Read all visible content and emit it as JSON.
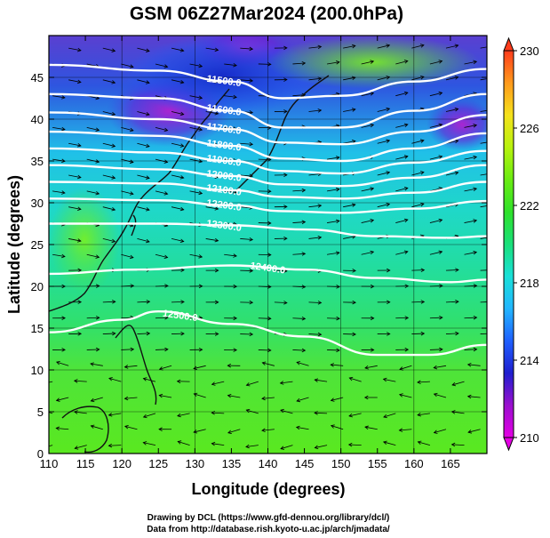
{
  "title": "GSM 06Z27Mar2024 (200.0hPa)",
  "xlabel": "Longitude (degrees)",
  "ylabel": "Latitude  (degrees)",
  "credit_line1": "Drawing by DCL (https://www.gfd-dennou.org/library/dcl/)",
  "credit_line2": "Data from http://database.rish.kyoto-u.ac.jp/arch/jmadata/",
  "map": {
    "lon_range": [
      110,
      170
    ],
    "lat_range": [
      0,
      50
    ],
    "xticks": [
      110,
      115,
      120,
      125,
      130,
      135,
      140,
      145,
      150,
      155,
      160,
      165
    ],
    "yticks": [
      0,
      5,
      10,
      15,
      20,
      25,
      30,
      35,
      40,
      45
    ],
    "grid_lon": [
      110,
      120,
      130,
      140,
      150,
      160,
      170
    ],
    "grid_lat": [
      0,
      5,
      10,
      15,
      20,
      25,
      30,
      35,
      40,
      45,
      50
    ]
  },
  "colorbar": {
    "min": 210,
    "max": 230,
    "tick_values": [
      210,
      214,
      218,
      222,
      226,
      230
    ],
    "tick_labels": [
      "210",
      "214",
      "218",
      "222",
      "226",
      "230"
    ],
    "colors": [
      "#e400e4",
      "#9a10ce",
      "#1f1fcf",
      "#1f60ff",
      "#22b6ff",
      "#19e0d8",
      "#19e07a",
      "#2fe12a",
      "#6aec12",
      "#b8f20e",
      "#f5e21c",
      "#ff9a1c",
      "#ff3c1c"
    ]
  },
  "contours": [
    {
      "label": "11500.0",
      "points": [
        [
          110,
          46.5
        ],
        [
          125,
          45.8
        ],
        [
          135,
          44.5
        ],
        [
          142,
          42.5
        ],
        [
          150,
          42.8
        ],
        [
          160,
          44.5
        ],
        [
          170,
          46.0
        ]
      ]
    },
    {
      "label": "11600.0",
      "points": [
        [
          110,
          43.0
        ],
        [
          125,
          42.5
        ],
        [
          135,
          41.0
        ],
        [
          142,
          39.0
        ],
        [
          150,
          39.0
        ],
        [
          160,
          41.0
        ],
        [
          170,
          43.0
        ]
      ]
    },
    {
      "label": "11700.0",
      "points": [
        [
          110,
          40.8
        ],
        [
          125,
          40.0
        ],
        [
          135,
          38.8
        ],
        [
          142,
          37.2
        ],
        [
          150,
          37.0
        ],
        [
          160,
          38.5
        ],
        [
          170,
          40.5
        ]
      ]
    },
    {
      "label": "11800.0",
      "points": [
        [
          110,
          38.5
        ],
        [
          125,
          38.0
        ],
        [
          135,
          36.8
        ],
        [
          142,
          35.3
        ],
        [
          150,
          35.0
        ],
        [
          160,
          36.5
        ],
        [
          170,
          38.3
        ]
      ]
    },
    {
      "label": "11900.0",
      "points": [
        [
          110,
          36.5
        ],
        [
          125,
          36.0
        ],
        [
          135,
          35.0
        ],
        [
          142,
          33.8
        ],
        [
          150,
          33.5
        ],
        [
          160,
          34.8
        ],
        [
          170,
          36.2
        ]
      ]
    },
    {
      "label": "12000.0",
      "points": [
        [
          110,
          34.5
        ],
        [
          125,
          34.0
        ],
        [
          135,
          33.2
        ],
        [
          142,
          32.2
        ],
        [
          150,
          32.0
        ],
        [
          160,
          33.0
        ],
        [
          170,
          34.5
        ]
      ]
    },
    {
      "label": "12100.0",
      "points": [
        [
          110,
          32.5
        ],
        [
          125,
          32.3
        ],
        [
          135,
          31.5
        ],
        [
          142,
          30.7
        ],
        [
          150,
          30.5
        ],
        [
          160,
          31.2
        ],
        [
          170,
          32.5
        ]
      ]
    },
    {
      "label": "12200.0",
      "points": [
        [
          110,
          30.5
        ],
        [
          125,
          30.3
        ],
        [
          135,
          29.7
        ],
        [
          142,
          29.0
        ],
        [
          150,
          28.8
        ],
        [
          160,
          29.3
        ],
        [
          170,
          30.2
        ]
      ]
    },
    {
      "label": "12300.0",
      "points": [
        [
          110,
          27.5
        ],
        [
          125,
          27.5
        ],
        [
          135,
          27.3
        ],
        [
          145,
          26.8
        ],
        [
          155,
          26.0
        ],
        [
          165,
          25.8
        ],
        [
          170,
          26.0
        ]
      ]
    },
    {
      "label": "12400.0",
      "points": [
        [
          110,
          21.5
        ],
        [
          122,
          22.0
        ],
        [
          135,
          22.5
        ],
        [
          145,
          22.0
        ],
        [
          155,
          21.0
        ],
        [
          165,
          20.5
        ],
        [
          170,
          20.8
        ]
      ]
    },
    {
      "label": "12500.0",
      "points": [
        [
          110,
          14.5
        ],
        [
          120,
          16.0
        ],
        [
          125,
          17.0
        ],
        [
          135,
          15.5
        ],
        [
          145,
          14.0
        ],
        [
          155,
          11.8
        ],
        [
          162,
          11.8
        ],
        [
          170,
          13.0
        ]
      ]
    }
  ]
}
